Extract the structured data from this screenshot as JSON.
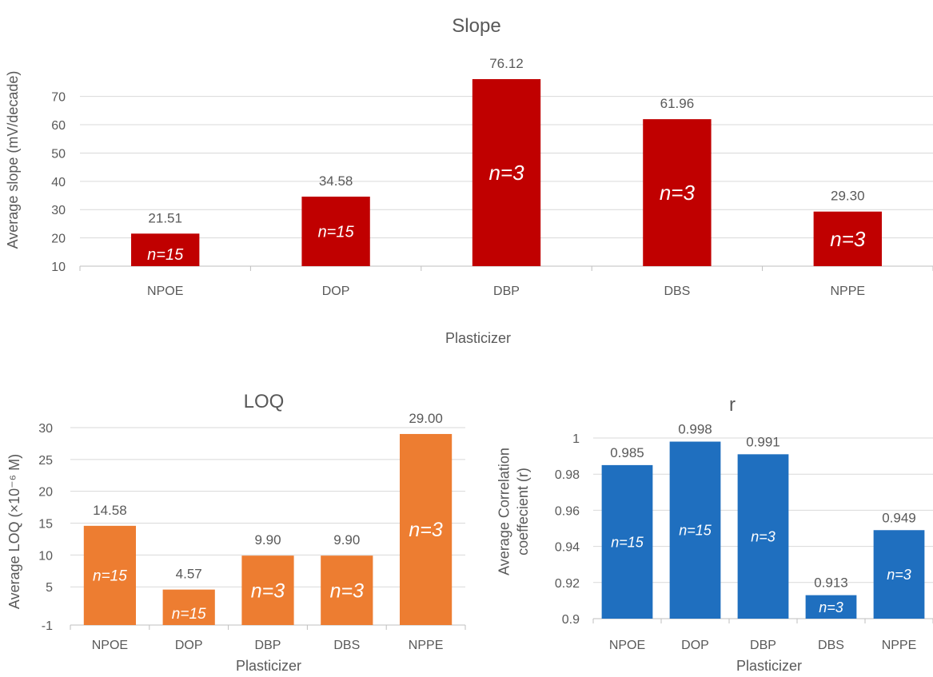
{
  "chart_data": [
    {
      "type": "bar",
      "title": "Slope",
      "xlabel": "Plasticizer",
      "ylabel": "Average slope (mV/decade)",
      "categories": [
        "NPOE",
        "DOP",
        "DBP",
        "DBS",
        "NPPE"
      ],
      "values": [
        21.51,
        34.58,
        76.12,
        61.96,
        29.3
      ],
      "data_labels": [
        "21.51",
        "34.58",
        "76.12",
        "61.96",
        "29.30"
      ],
      "n_labels": [
        "n=15",
        "n=15",
        "n=3",
        "n=3",
        "n=3"
      ],
      "yticks": [
        "10",
        "20",
        "30",
        "40",
        "50",
        "60",
        "70"
      ],
      "ytick_values": [
        10,
        20,
        30,
        40,
        50,
        60,
        70
      ],
      "ylim": [
        10,
        76.12
      ],
      "grid": true,
      "color": "#C00000"
    },
    {
      "type": "bar",
      "title": "LOQ",
      "xlabel": "Plasticizer",
      "ylabel": "Average LOQ (×10⁻⁶ M)",
      "categories": [
        "NPOE",
        "DOP",
        "DBP",
        "DBS",
        "NPPE"
      ],
      "values": [
        14.58,
        4.57,
        9.9,
        9.9,
        29.0
      ],
      "data_labels": [
        "14.58",
        "4.57",
        "9.90",
        "9.90",
        "29.00"
      ],
      "n_labels": [
        "n=15",
        "n=15",
        "n=3",
        "n=3",
        "n=3"
      ],
      "yticks": [
        "-1",
        "5",
        "10",
        "15",
        "20",
        "25",
        "30"
      ],
      "ytick_values": [
        -1,
        5,
        10,
        15,
        20,
        25,
        30
      ],
      "ylim": [
        -1,
        30
      ],
      "grid": true,
      "color": "#ED7D31"
    },
    {
      "type": "bar",
      "title": "r",
      "xlabel": "Plasticizer",
      "ylabel": "Average Correlation coeffecient (r)",
      "categories": [
        "NPOE",
        "DOP",
        "DBP",
        "DBS",
        "NPPE"
      ],
      "values": [
        0.985,
        0.998,
        0.991,
        0.913,
        0.949
      ],
      "data_labels": [
        "0.985",
        "0.998",
        "0.991",
        "0.913",
        "0.949"
      ],
      "n_labels": [
        "n=15",
        "n=15",
        "n=3",
        "n=3",
        "n=3"
      ],
      "yticks": [
        "0.9",
        "0.92",
        "0.94",
        "0.96",
        "0.98",
        "1"
      ],
      "ytick_values": [
        0.9,
        0.92,
        0.94,
        0.96,
        0.98,
        1
      ],
      "ylim": [
        0.9,
        1
      ],
      "grid": true,
      "color": "#1F6FBF"
    }
  ]
}
